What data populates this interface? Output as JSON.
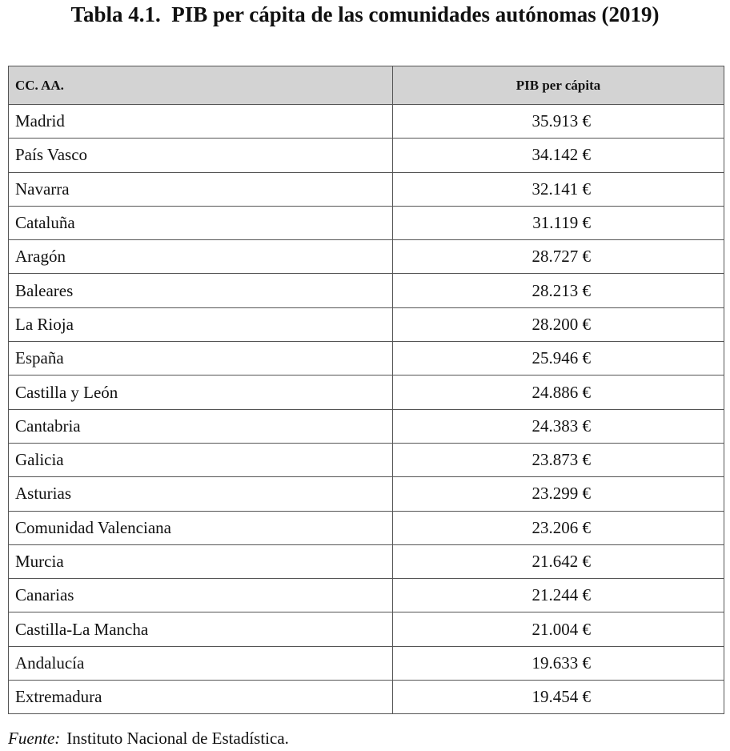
{
  "title": "Tabla 4.1.  PIB per cápita de las comunidades autónomas (2019)",
  "table": {
    "header": [
      "CC. AA.",
      "PIB per cápita"
    ],
    "rows": [
      [
        "Madrid",
        "35.913 €"
      ],
      [
        "País Vasco",
        "34.142 €"
      ],
      [
        "Navarra",
        "32.141 €"
      ],
      [
        "Cataluña",
        "31.119 €"
      ],
      [
        "Aragón",
        "28.727 €"
      ],
      [
        "Baleares",
        "28.213 €"
      ],
      [
        "La Rioja",
        "28.200 €"
      ],
      [
        "España",
        "25.946 €"
      ],
      [
        "Castilla y León",
        "24.886 €"
      ],
      [
        "Cantabria",
        "24.383 €"
      ],
      [
        "Galicia",
        "23.873 €"
      ],
      [
        "Asturias",
        "23.299 €"
      ],
      [
        "Comunidad Valenciana",
        "23.206 €"
      ],
      [
        "Murcia",
        "21.642 €"
      ],
      [
        "Canarias",
        "21.244 €"
      ],
      [
        "Castilla-La Mancha",
        "21.004 €"
      ],
      [
        "Andalucía",
        "19.633 €"
      ],
      [
        "Extremadura",
        "19.454 €"
      ]
    ]
  },
  "source": {
    "label": "Fuente:",
    "text": "Instituto Nacional de Estadística."
  }
}
